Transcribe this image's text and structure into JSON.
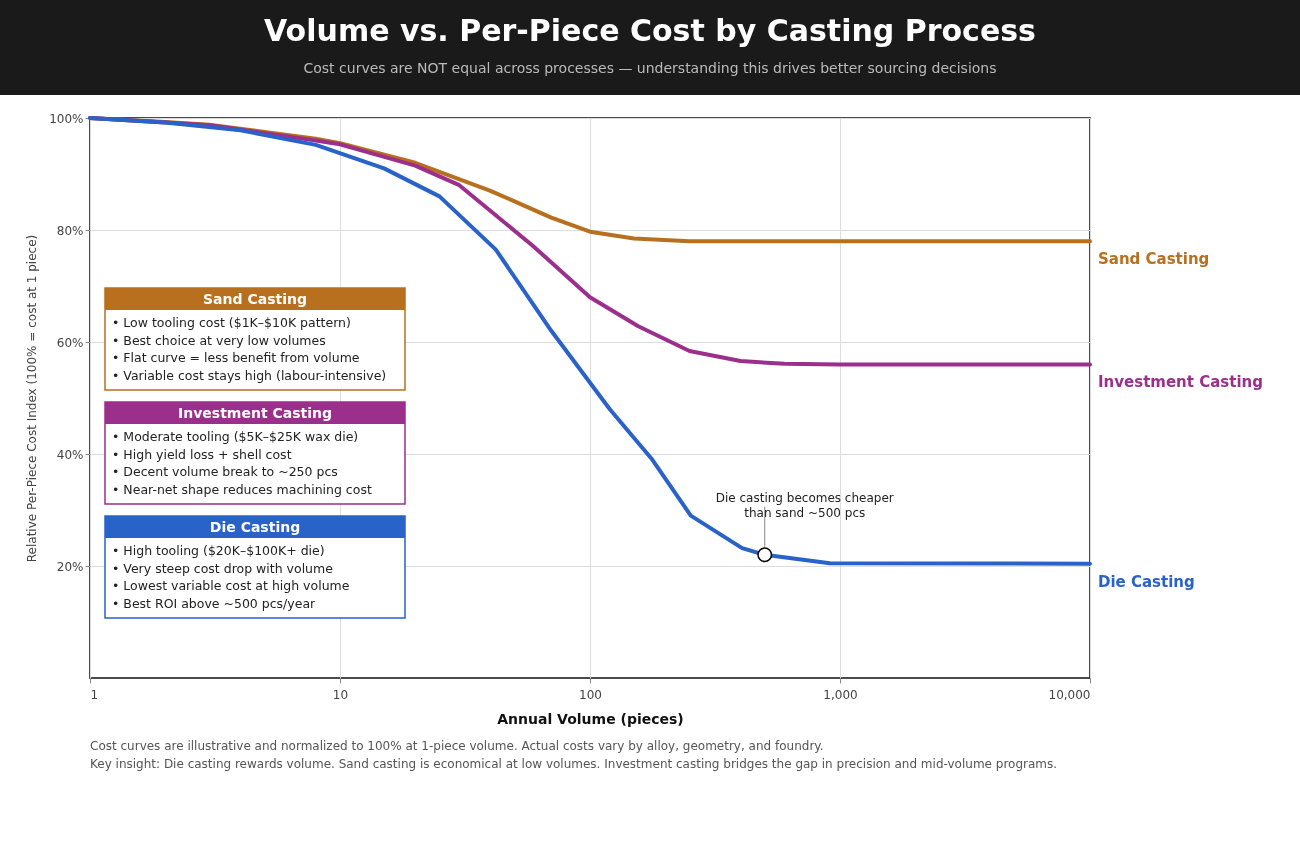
{
  "chart_data": {
    "type": "line",
    "title": "Volume vs. Per-Piece Cost by Casting Process",
    "subtitle": "Cost curves are NOT equal across processes — understanding this drives better sourcing decisions",
    "xlabel": "Annual Volume (pieces)",
    "ylabel": "Relative Per-Piece Cost Index (100% = cost at 1 piece)",
    "log": "x",
    "xlim": [
      1,
      10000
    ],
    "xticks": [
      1,
      10,
      100,
      {
        "value": 1000,
        "label": "1,000"
      },
      {
        "value": 10000,
        "label": "10,000"
      }
    ],
    "ylim": [
      0,
      100
    ],
    "yticks": [
      {
        "value": 20,
        "label": "20%"
      },
      {
        "value": 40,
        "label": "40%"
      },
      {
        "value": 60,
        "label": "60%"
      },
      {
        "value": 80,
        "label": "80%"
      },
      {
        "value": 100,
        "label": "100%"
      }
    ],
    "grid": true,
    "legend": false,
    "marker": "none",
    "line_style": "solid",
    "series": [
      {
        "name": "Sand Casting",
        "color": "#b8701f",
        "x": [
          1,
          2,
          3,
          5,
          8,
          10,
          20,
          40,
          70,
          100,
          150,
          250,
          1000,
          10000
        ],
        "values": [
          100,
          99.3,
          98.8,
          97.5,
          96.3,
          95.5,
          92,
          87,
          82.2,
          79.7,
          78.5,
          78,
          78,
          78
        ]
      },
      {
        "name": "Investment Casting",
        "color": "#9c2f8c",
        "x": [
          1,
          2,
          3,
          5,
          8,
          10,
          20,
          30,
          59,
          100,
          156,
          250,
          400,
          600,
          1000,
          10000
        ],
        "values": [
          100,
          99.2,
          98.7,
          97.3,
          96,
          95.3,
          91.5,
          88,
          77.2,
          68,
          62.8,
          58.4,
          56.6,
          56.1,
          56,
          56
        ]
      },
      {
        "name": "Die Casting",
        "color": "#2962c8",
        "x": [
          1,
          2,
          4,
          8,
          15,
          25,
          42,
          70,
          120,
          176,
          253,
          406,
          500,
          910,
          10000
        ],
        "values": [
          100,
          99.2,
          97.8,
          95.2,
          91,
          86,
          76.5,
          62,
          48,
          39.2,
          29,
          23.2,
          22,
          20.5,
          20.4
        ]
      }
    ],
    "annotations": [
      "Sand Casting\n• Low tooling cost ($1K–$10K pattern)\n• Best choice at very low volumes\n• Flat curve = less benefit from volume\n• Variable cost stays high (labour-intensive)",
      "Investment Casting\n• Moderate tooling ($5K–$25K wax die)\n• High yield loss + shell cost\n• Decent volume break to ~250 pcs\n• Near-net shape reduces machining cost",
      "Die Casting\n• High tooling ($20K–$100K+ die)\n• Very steep cost drop with volume\n• Lowest variable cost at high volume\n• Best ROI above ~500 pcs/year",
      {
        "text": "Die casting becomes cheaper than sand ~500 pcs",
        "x": 500,
        "y": 22
      },
      "Cost curves are illustrative and normalized to 100% at 1-piece volume. Actual costs vary by alloy, geometry, and foundry.",
      "Key insight: Die casting rewards volume. Sand casting is economical at low volumes. Investment casting bridges the gap in precision and mid-volume programs."
    ]
  }
}
